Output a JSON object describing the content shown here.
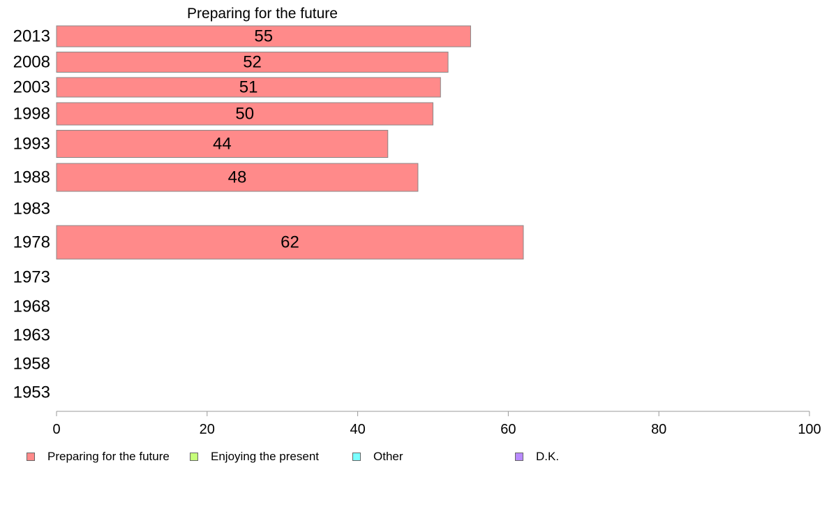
{
  "chart_data": {
    "type": "bar",
    "orientation": "horizontal",
    "title": "Preparing for the future",
    "categories": [
      "2013",
      "2008",
      "2003",
      "1998",
      "1993",
      "1988",
      "1983",
      "1978",
      "1973",
      "1968",
      "1963",
      "1958",
      "1953"
    ],
    "series": [
      {
        "name": "Preparing for the future",
        "color": "#ff8a8a",
        "values": [
          55,
          52,
          51,
          50,
          44,
          48,
          null,
          62,
          null,
          null,
          null,
          null,
          null
        ]
      }
    ],
    "xlim": [
      0,
      100
    ],
    "xticks": [
      0,
      20,
      40,
      60,
      80,
      100
    ],
    "grid": false,
    "legend_position": "bottom"
  },
  "legend": [
    {
      "label": "Preparing for the future",
      "color": "#ff8a8a"
    },
    {
      "label": "Enjoying the present",
      "color": "#c6ff7a"
    },
    {
      "label": "Other",
      "color": "#7affff"
    },
    {
      "label": "D.K.",
      "color": "#b98aff"
    }
  ]
}
